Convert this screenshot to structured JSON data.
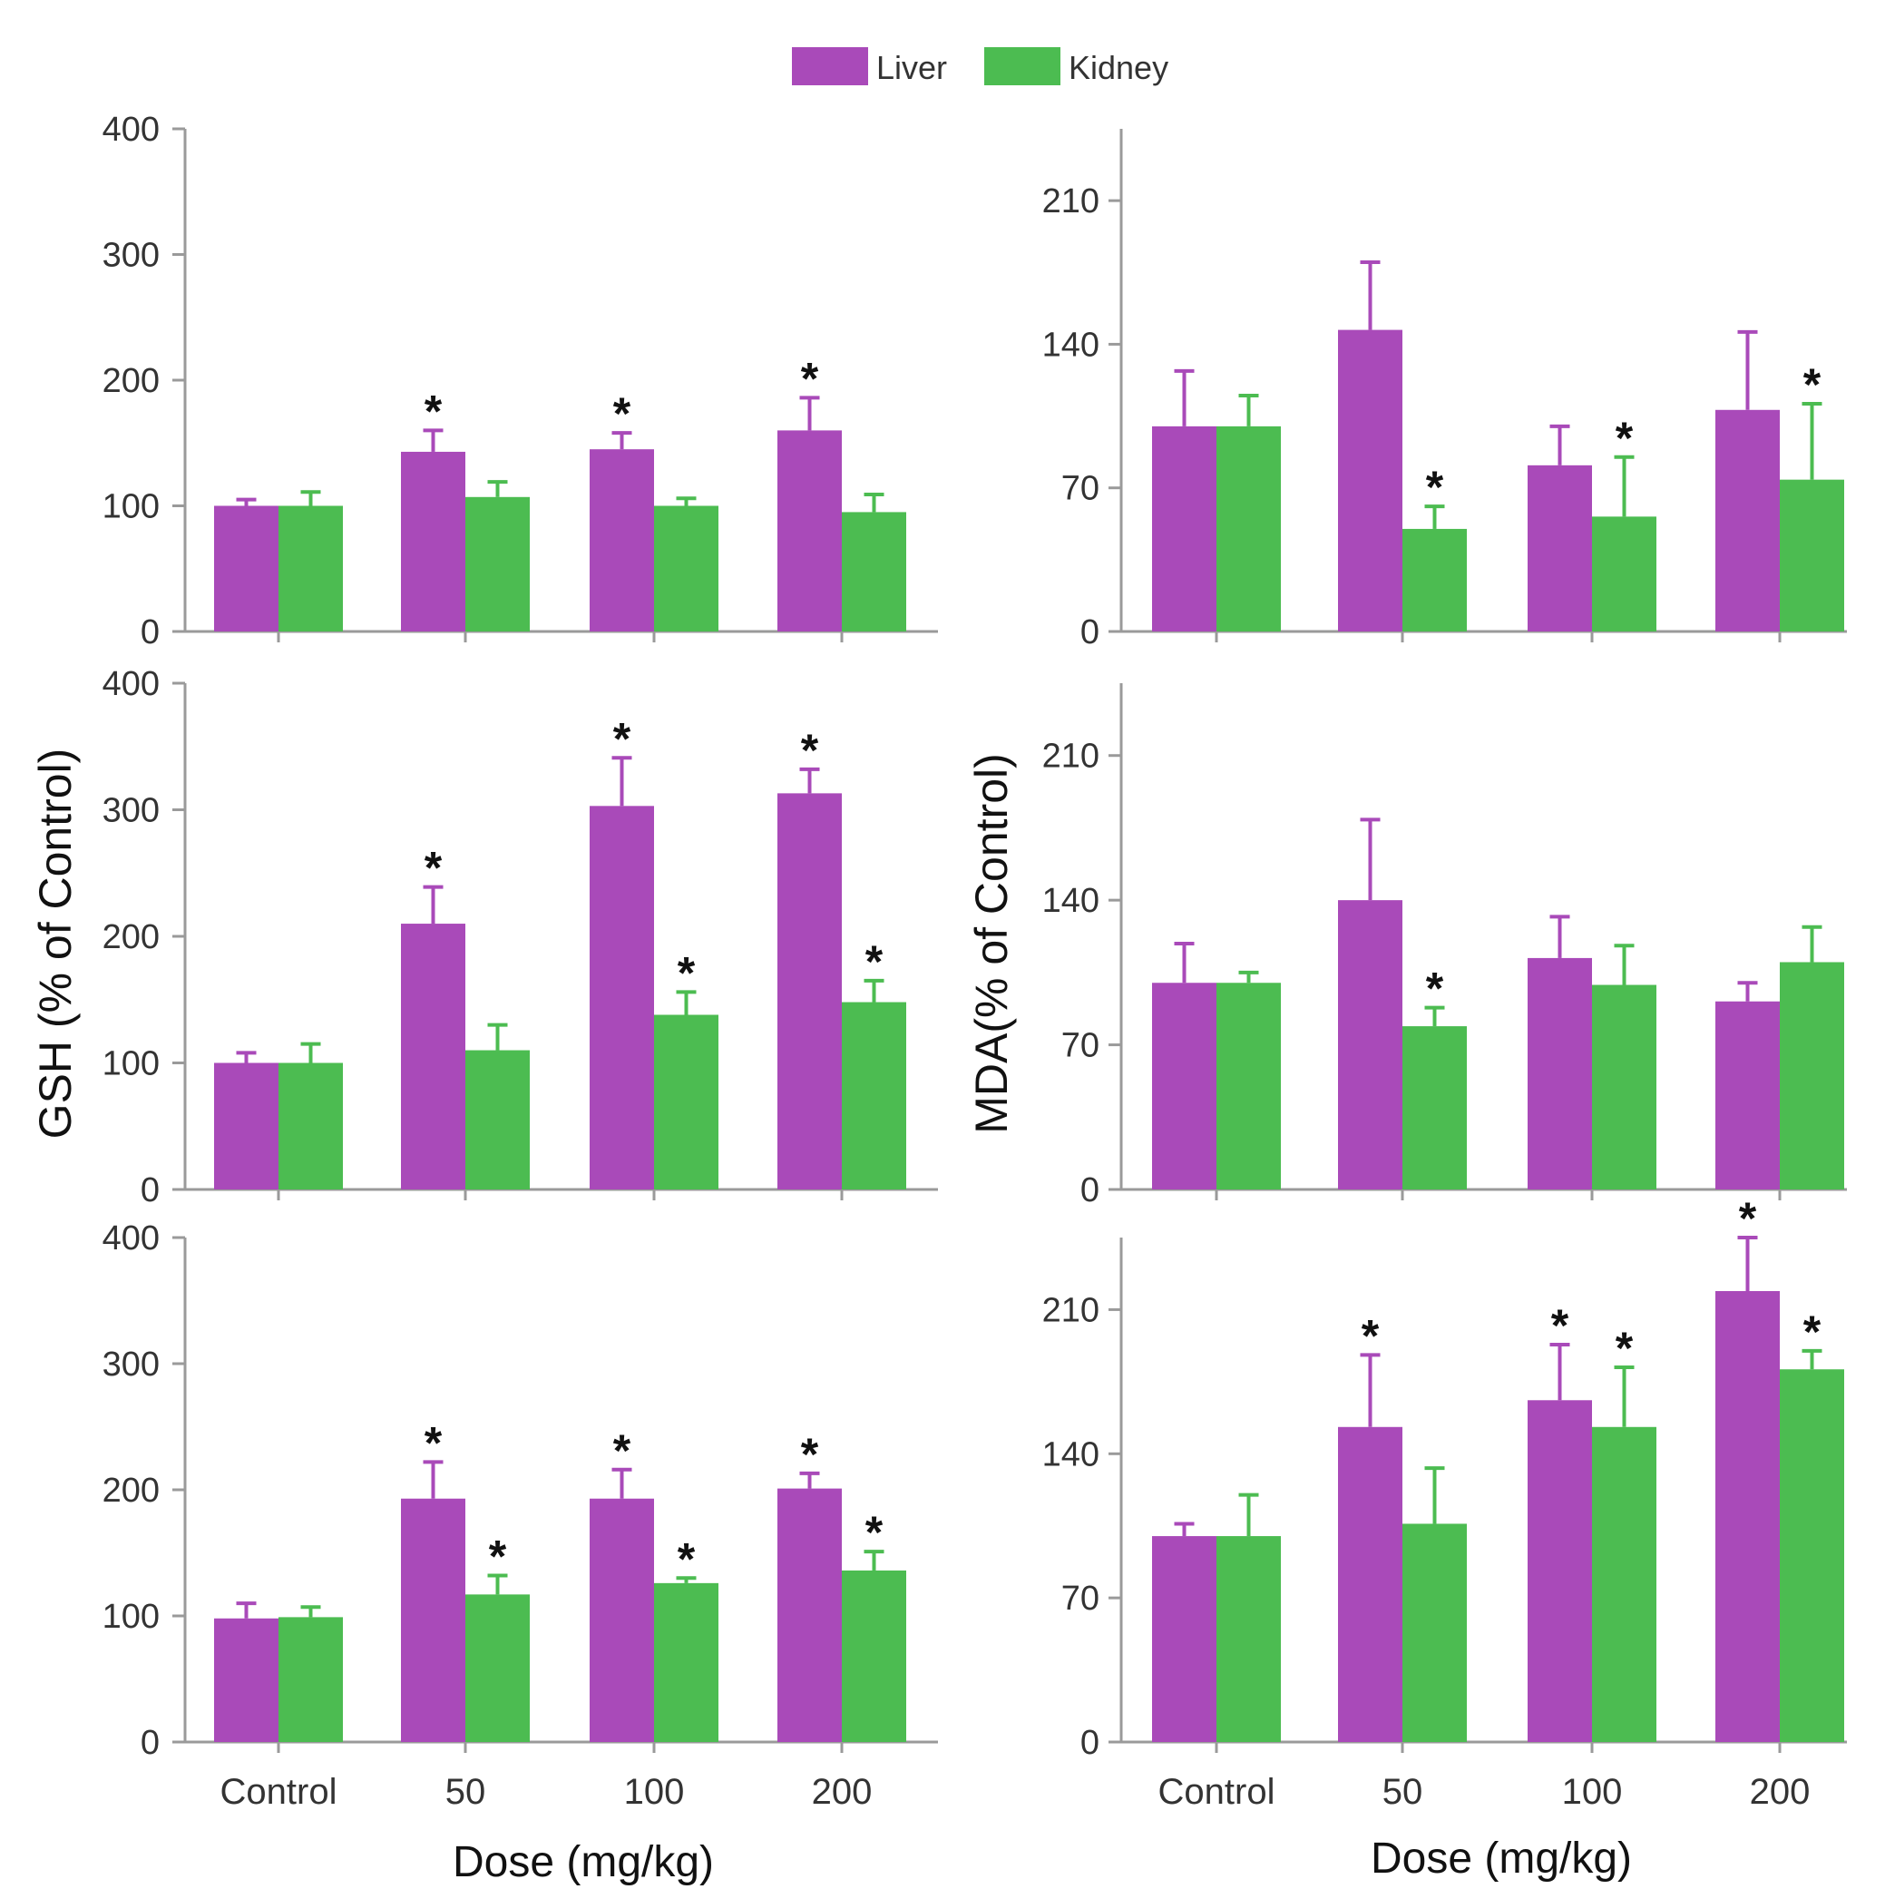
{
  "legend": {
    "series": [
      {
        "name": "Liver",
        "color": "#A94AB9"
      },
      {
        "name": "Kidney",
        "color": "#4CBC51"
      }
    ]
  },
  "y_axis_labels": {
    "left": "GSH (% of Control)",
    "right": "MDA(% of Control)"
  },
  "chart_data": [
    {
      "type": "bar",
      "column": "left",
      "row": 1,
      "categories": [
        "Control",
        "50",
        "100",
        "200"
      ],
      "ylim": [
        0,
        400
      ],
      "yticks": [
        0,
        100,
        200,
        300,
        400
      ],
      "series": [
        {
          "name": "Liver",
          "values": [
            100,
            143,
            145,
            160
          ],
          "errors": [
            5,
            17,
            13,
            26
          ],
          "sig": [
            false,
            true,
            true,
            true
          ]
        },
        {
          "name": "Kidney",
          "values": [
            100,
            107,
            100,
            95
          ],
          "errors": [
            11,
            12,
            6,
            14
          ],
          "sig": [
            false,
            false,
            false,
            false
          ]
        }
      ]
    },
    {
      "type": "bar",
      "column": "right",
      "row": 1,
      "categories": [
        "Control",
        "50",
        "100",
        "200"
      ],
      "ylim": [
        0,
        245
      ],
      "yticks": [
        0,
        70,
        140,
        210
      ],
      "series": [
        {
          "name": "Liver",
          "values": [
            100,
            147,
            81,
            108
          ],
          "errors": [
            27,
            33,
            19,
            38
          ],
          "sig": [
            false,
            false,
            false,
            false
          ]
        },
        {
          "name": "Kidney",
          "values": [
            100,
            50,
            56,
            74
          ],
          "errors": [
            15,
            11,
            29,
            37
          ],
          "sig": [
            false,
            true,
            true,
            true
          ]
        }
      ]
    },
    {
      "type": "bar",
      "column": "left",
      "row": 2,
      "categories": [
        "Control",
        "50",
        "100",
        "200"
      ],
      "ylim": [
        0,
        400
      ],
      "yticks": [
        0,
        100,
        200,
        300,
        400
      ],
      "series": [
        {
          "name": "Liver",
          "values": [
            100,
            210,
            303,
            313
          ],
          "errors": [
            8,
            29,
            38,
            19
          ],
          "sig": [
            false,
            true,
            true,
            true
          ]
        },
        {
          "name": "Kidney",
          "values": [
            100,
            110,
            138,
            148
          ],
          "errors": [
            15,
            20,
            18,
            17
          ],
          "sig": [
            false,
            false,
            true,
            true
          ]
        }
      ]
    },
    {
      "type": "bar",
      "column": "right",
      "row": 2,
      "categories": [
        "Control",
        "50",
        "100",
        "200"
      ],
      "ylim": [
        0,
        245
      ],
      "yticks": [
        0,
        70,
        140,
        210
      ],
      "series": [
        {
          "name": "Liver",
          "values": [
            100,
            140,
            112,
            91
          ],
          "errors": [
            19,
            39,
            20,
            9
          ],
          "sig": [
            false,
            false,
            false,
            false
          ]
        },
        {
          "name": "Kidney",
          "values": [
            100,
            79,
            99,
            110
          ],
          "errors": [
            5,
            9,
            19,
            17
          ],
          "sig": [
            false,
            true,
            false,
            false
          ]
        }
      ]
    },
    {
      "type": "bar",
      "column": "left",
      "row": 3,
      "categories": [
        "Control",
        "50",
        "100",
        "200"
      ],
      "ylim": [
        0,
        400
      ],
      "yticks": [
        0,
        100,
        200,
        300,
        400
      ],
      "series": [
        {
          "name": "Liver",
          "values": [
            98,
            193,
            193,
            201
          ],
          "errors": [
            12,
            29,
            23,
            12
          ],
          "sig": [
            false,
            true,
            true,
            true
          ]
        },
        {
          "name": "Kidney",
          "values": [
            99,
            117,
            126,
            136
          ],
          "errors": [
            8,
            15,
            4,
            15
          ],
          "sig": [
            false,
            true,
            true,
            true
          ]
        }
      ]
    },
    {
      "type": "bar",
      "column": "right",
      "row": 3,
      "categories": [
        "Control",
        "50",
        "100",
        "200"
      ],
      "ylim": [
        0,
        245
      ],
      "yticks": [
        0,
        70,
        140,
        210
      ],
      "series": [
        {
          "name": "Liver",
          "values": [
            100,
            153,
            166,
            219
          ],
          "errors": [
            6,
            35,
            27,
            26
          ],
          "sig": [
            false,
            true,
            true,
            true
          ]
        },
        {
          "name": "Kidney",
          "values": [
            100,
            106,
            153,
            181
          ],
          "errors": [
            20,
            27,
            29,
            9
          ],
          "sig": [
            false,
            false,
            true,
            true
          ]
        }
      ]
    }
  ],
  "x_axis": {
    "label": "Dose (mg/kg)",
    "categories": [
      "Control",
      "50",
      "100",
      "200"
    ]
  },
  "significance_marker": "*"
}
